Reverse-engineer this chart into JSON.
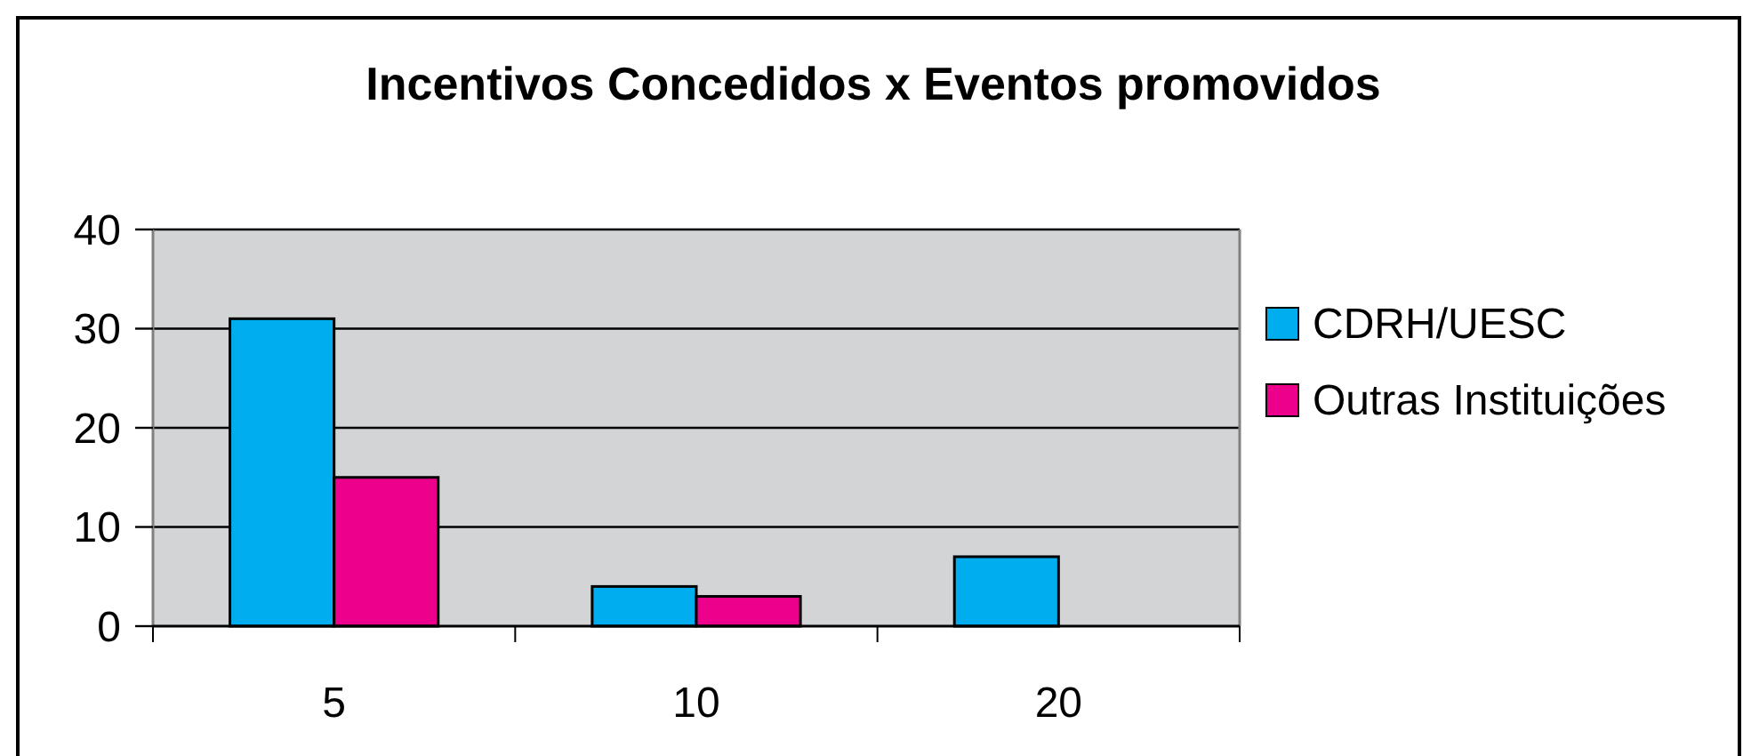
{
  "chart_data": {
    "type": "bar",
    "title": "Incentivos Concedidos x Eventos promovidos",
    "categories": [
      "5",
      "10",
      "20"
    ],
    "series": [
      {
        "name": "CDRH/UESC",
        "color": "#00aeef",
        "values": [
          31,
          4,
          7
        ]
      },
      {
        "name": "Outras Instituições",
        "color": "#ec008c",
        "values": [
          15,
          3,
          null
        ]
      }
    ],
    "ylim": [
      0,
      40
    ],
    "yticks": [
      0,
      10,
      20,
      30,
      40
    ],
    "grid": "y",
    "legend": "right"
  }
}
